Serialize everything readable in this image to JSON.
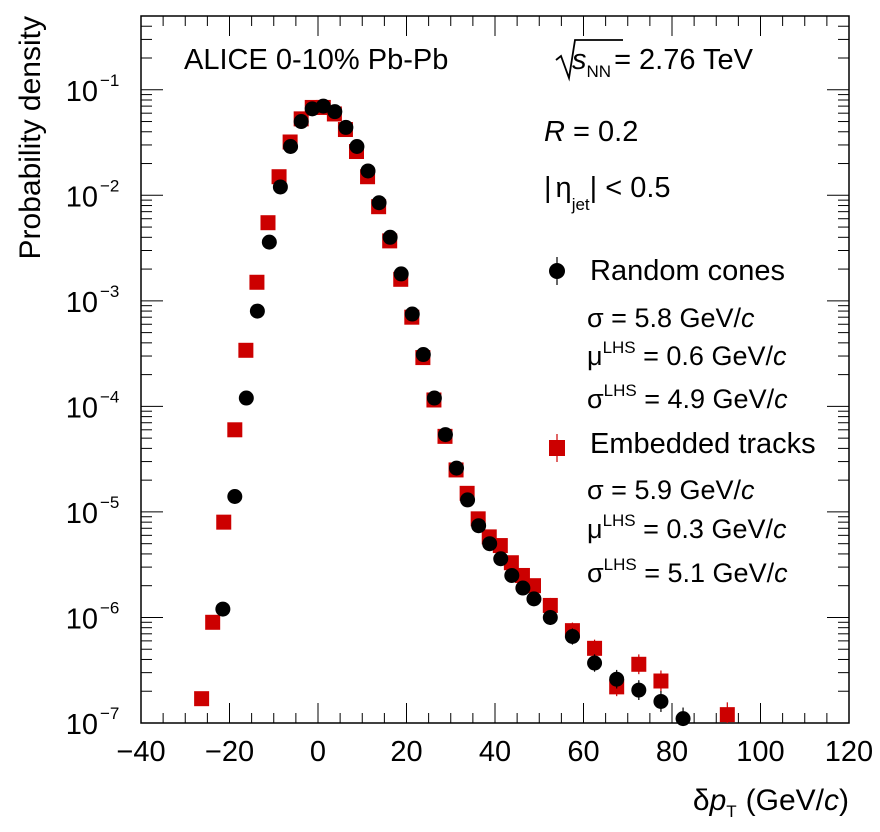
{
  "chart_data": {
    "type": "scatter",
    "title": "ALICE  0-10%  Pb-Pb",
    "energy_label": {
      "sqrt": "s",
      "subscript": "NN",
      "value": "= 2.76 TeV"
    },
    "xlabel": {
      "delta": "δ",
      "p": "p",
      "subscript": "T",
      "unit": "(GeV/",
      "c": "c",
      "close": ")"
    },
    "ylabel": "Probability density",
    "xlim": [
      -40,
      120
    ],
    "ylim": [
      1e-07,
      0.5
    ],
    "yscale": "log",
    "x_ticks": [
      "−40",
      "−20",
      "0",
      "20",
      "40",
      "60",
      "80",
      "100",
      "120"
    ],
    "x_tick_values": [
      -40,
      -20,
      0,
      20,
      40,
      60,
      80,
      100,
      120
    ],
    "y_ticks": [
      {
        "base": "10",
        "exp": "−1",
        "value": 0.1
      },
      {
        "base": "10",
        "exp": "−2",
        "value": 0.01
      },
      {
        "base": "10",
        "exp": "−3",
        "value": 0.001
      },
      {
        "base": "10",
        "exp": "−4",
        "value": 0.0001
      },
      {
        "base": "10",
        "exp": "−5",
        "value": 1e-05
      },
      {
        "base": "10",
        "exp": "−6",
        "value": 1e-06
      },
      {
        "base": "10",
        "exp": "−7",
        "value": 1e-07
      }
    ],
    "annotations": {
      "radius": {
        "R": "R",
        "text": " = 0.2"
      },
      "eta": {
        "open": "|",
        "eta": "η",
        "subscript": "jet",
        "text": "| < 0.5"
      }
    },
    "series": [
      {
        "name": "Random cones",
        "marker": "circle",
        "color": "#000000",
        "stats": [
          {
            "symbol": "σ",
            "sup": "",
            "text": " =  5.8 GeV/",
            "c": "c"
          },
          {
            "symbol": "μ",
            "sup": "LHS",
            "text": " =  0.6 GeV/",
            "c": "c"
          },
          {
            "symbol": "σ",
            "sup": "LHS",
            "text": " =  4.9 GeV/",
            "c": "c"
          }
        ],
        "points": [
          [
            -21.5,
            1.2e-06
          ],
          [
            -18.8,
            1.4e-05
          ],
          [
            -16.2,
            0.00012
          ],
          [
            -13.7,
            0.0008
          ],
          [
            -11.0,
            0.0036
          ],
          [
            -8.5,
            0.012
          ],
          [
            -6.2,
            0.029
          ],
          [
            -3.8,
            0.05
          ],
          [
            -1.3,
            0.066
          ],
          [
            1.2,
            0.07
          ],
          [
            3.8,
            0.062
          ],
          [
            6.3,
            0.044
          ],
          [
            8.8,
            0.029
          ],
          [
            11.3,
            0.017
          ],
          [
            13.8,
            0.0085
          ],
          [
            16.3,
            0.004
          ],
          [
            18.8,
            0.0018
          ],
          [
            21.3,
            0.00075
          ],
          [
            23.8,
            0.00031
          ],
          [
            26.3,
            0.00012
          ],
          [
            28.8,
            5.4e-05
          ],
          [
            31.3,
            2.6e-05
          ],
          [
            33.8,
            1.3e-05
          ],
          [
            36.3,
            7.4e-06
          ],
          [
            38.8,
            5e-06
          ],
          [
            41.3,
            3.6e-06
          ],
          [
            43.8,
            2.5e-06
          ],
          [
            46.3,
            1.9e-06
          ],
          [
            48.8,
            1.5e-06
          ],
          [
            52.5,
            1e-06
          ],
          [
            57.5,
            6.6e-07
          ],
          [
            62.5,
            3.7e-07
          ],
          [
            67.5,
            2.6e-07
          ],
          [
            72.5,
            2.05e-07
          ],
          [
            77.5,
            1.6e-07
          ],
          [
            82.5,
            1.1e-07
          ]
        ]
      },
      {
        "name": "Embedded tracks",
        "marker": "square",
        "color": "#cc0000",
        "stats": [
          {
            "symbol": "σ",
            "sup": "",
            "text": " =  5.9 GeV/",
            "c": "c"
          },
          {
            "symbol": "μ",
            "sup": "LHS",
            "text": " =  0.3 GeV/",
            "c": "c"
          },
          {
            "symbol": "σ",
            "sup": "LHS",
            "text": " =  5.1 GeV/",
            "c": "c"
          }
        ],
        "points": [
          [
            -26.3,
            1.7e-07
          ],
          [
            -23.8,
            9e-07
          ],
          [
            -21.3,
            8e-06
          ],
          [
            -18.8,
            6e-05
          ],
          [
            -16.3,
            0.00034
          ],
          [
            -13.8,
            0.0015
          ],
          [
            -11.3,
            0.0055
          ],
          [
            -8.8,
            0.015
          ],
          [
            -6.3,
            0.032
          ],
          [
            -3.8,
            0.053
          ],
          [
            -1.3,
            0.068
          ],
          [
            1.2,
            0.068
          ],
          [
            3.7,
            0.059
          ],
          [
            6.2,
            0.042
          ],
          [
            8.7,
            0.026
          ],
          [
            11.2,
            0.015
          ],
          [
            13.7,
            0.0078
          ],
          [
            16.2,
            0.0037
          ],
          [
            18.7,
            0.0016
          ],
          [
            21.2,
            0.0007
          ],
          [
            23.7,
            0.00029
          ],
          [
            26.2,
            0.000115
          ],
          [
            28.7,
            5.2e-05
          ],
          [
            31.2,
            2.5e-05
          ],
          [
            33.7,
            1.5e-05
          ],
          [
            36.2,
            8.6e-06
          ],
          [
            38.7,
            5.8e-06
          ],
          [
            41.2,
            4.8e-06
          ],
          [
            43.7,
            3.3e-06
          ],
          [
            46.2,
            2.5e-06
          ],
          [
            48.7,
            2e-06
          ],
          [
            52.5,
            1.3e-06
          ],
          [
            57.5,
            7.5e-07
          ],
          [
            62.5,
            5.1e-07
          ],
          [
            67.5,
            2.2e-07
          ],
          [
            72.5,
            3.6e-07
          ],
          [
            77.5,
            2.5e-07
          ],
          [
            92.5,
            1.2e-07
          ]
        ]
      }
    ]
  }
}
